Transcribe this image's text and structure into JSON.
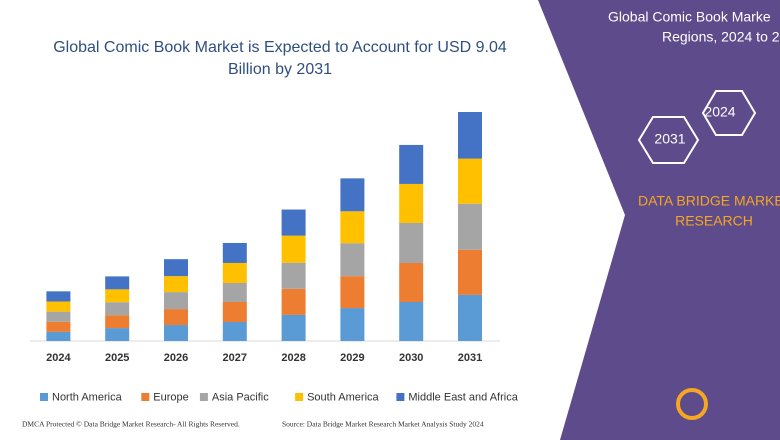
{
  "chart_data": {
    "type": "stacked_bar",
    "title": [
      "Global Comic Book Market is Expected to Account for USD 9.04",
      "Billion by 2031"
    ],
    "categories": [
      "2024",
      "2025",
      "2026",
      "2027",
      "2028",
      "2029",
      "2030",
      "2031"
    ],
    "series": [
      {
        "name": "North America",
        "color": "#5b9bd5",
        "values": [
          0.36,
          0.51,
          0.63,
          0.75,
          1.03,
          1.3,
          1.54,
          1.82
        ]
      },
      {
        "name": "Europe",
        "color": "#ed7d31",
        "values": [
          0.4,
          0.51,
          0.63,
          0.79,
          1.03,
          1.26,
          1.54,
          1.78
        ]
      },
      {
        "name": "Asia Pacific",
        "color": "#a5a5a5",
        "values": [
          0.4,
          0.51,
          0.67,
          0.75,
          1.03,
          1.3,
          1.58,
          1.82
        ]
      },
      {
        "name": "South America",
        "color": "#ffc000",
        "values": [
          0.4,
          0.51,
          0.63,
          0.79,
          1.07,
          1.26,
          1.54,
          1.78
        ]
      },
      {
        "name": "Middle East and Africa",
        "color": "#4472c4",
        "values": [
          0.4,
          0.51,
          0.67,
          0.79,
          1.03,
          1.3,
          1.54,
          1.84
        ]
      }
    ],
    "legend": "bottom"
  },
  "panel": {
    "title": [
      "Global Comic Book Marke",
      "Regions, 2024 to 2"
    ],
    "hex_labels": [
      "2024",
      "2031"
    ],
    "brand": [
      "DATA BRIDGE MARKE",
      "RESEARCH"
    ]
  },
  "footer": {
    "left": "DMCA Protected © Data Bridge Market Research- All Rights Reserved.",
    "right": "Source: Data Bridge Market Research  Market Analysis Study 2024"
  }
}
